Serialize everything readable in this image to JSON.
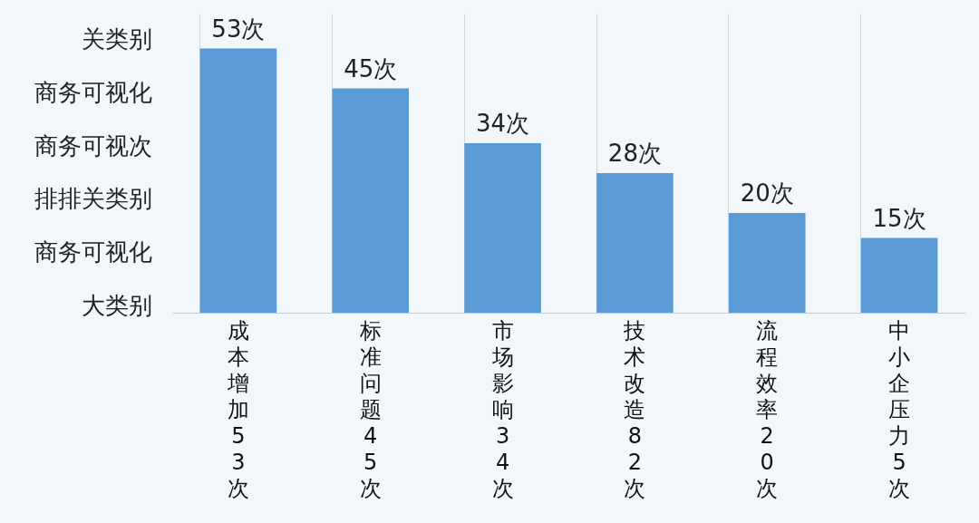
{
  "chart_data": {
    "type": "bar",
    "categories": [
      "成本增加53次",
      "标准问题45次",
      "市场影响34次",
      "技术改造82次",
      "流程效率20次",
      "中小企压力5次"
    ],
    "values": [
      53,
      45,
      34,
      28,
      20,
      15
    ],
    "value_labels": [
      "53次",
      "45次",
      "34次",
      "28次",
      "20次",
      "15次"
    ],
    "color": "#5b9bd5",
    "ylim": [
      0,
      60
    ],
    "annotations": [
      "关类别",
      "商务可视化",
      "商务可视次",
      "排排关类别",
      "商务可视化",
      "大类别"
    ],
    "grid": "x"
  }
}
